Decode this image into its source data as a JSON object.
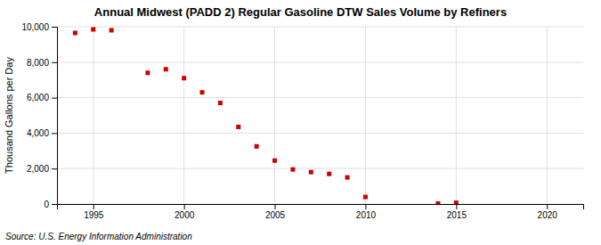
{
  "chart_data": {
    "type": "scatter",
    "title": "Annual Midwest (PADD 2) Regular Gasoline DTW Sales Volume by Refiners",
    "ylabel": "Thousand Gallons per Day",
    "annotations": [
      "Source: U.S. Energy Information Administration"
    ],
    "x": [
      1994,
      1995,
      1996,
      1998,
      1999,
      2000,
      2001,
      2002,
      2003,
      2004,
      2005,
      2006,
      2007,
      2008,
      2009,
      2010,
      2014,
      2015
    ],
    "values": [
      9650,
      9850,
      9800,
      7400,
      7600,
      7100,
      6300,
      5700,
      4350,
      3250,
      2450,
      1950,
      1800,
      1700,
      1500,
      400,
      30,
      70
    ],
    "color": "#cc0000",
    "marker": "square",
    "xlim": [
      1993,
      2022
    ],
    "xticks": [
      1995,
      2000,
      2005,
      2010,
      2015,
      2020
    ],
    "ylim": [
      0,
      10000
    ],
    "yticks": [
      0,
      {
        "value": 2000,
        "label": "2,000"
      },
      {
        "value": 4000,
        "label": "4,000"
      },
      {
        "value": 6000,
        "label": "6,000"
      },
      {
        "value": 8000,
        "label": "8,000"
      },
      {
        "value": 10000,
        "label": "10,000"
      }
    ],
    "grid": true
  }
}
